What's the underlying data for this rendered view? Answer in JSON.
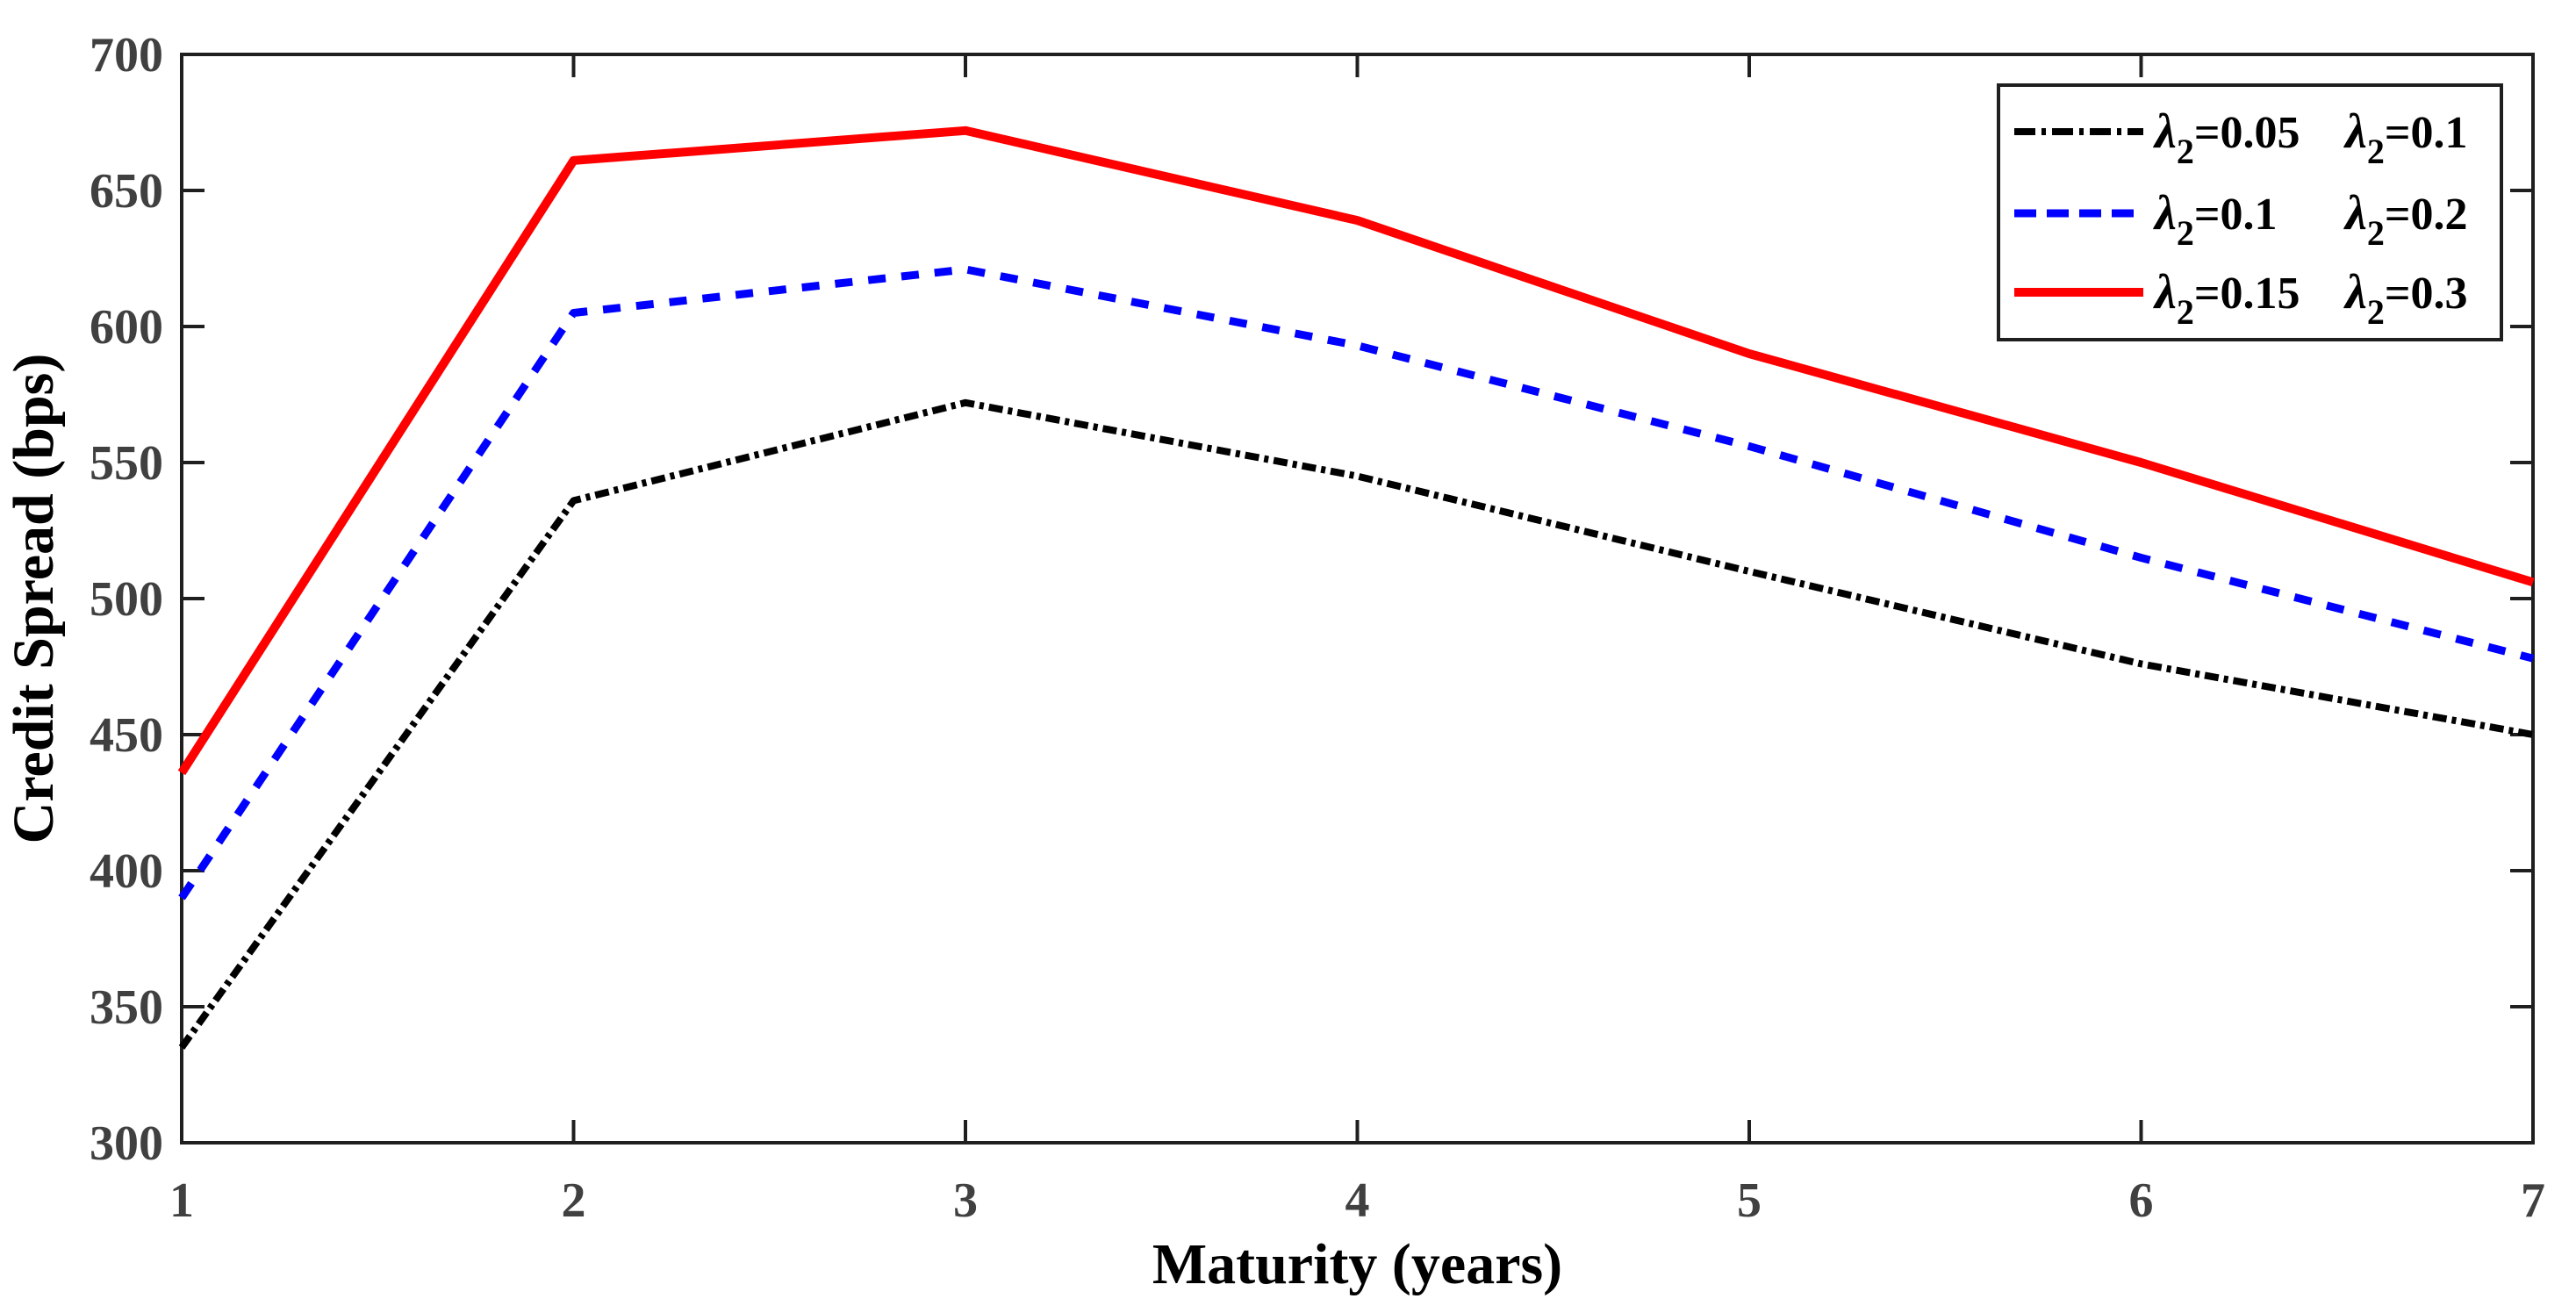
{
  "figure": {
    "background": "#ffffff",
    "xlabel": "Maturity (years)",
    "ylabel": "Credit Spread (bps)"
  },
  "style": {
    "axis_color": "#1f1f1f",
    "tick_label_color": "#404040",
    "axis_label_color": "#000000",
    "legend_border_color": "#1f1f1f",
    "legend_background": "#ffffff",
    "series_colors": {
      "black": "#000000",
      "blue": "#0000ff",
      "red": "#ff0000"
    }
  },
  "chart_data": {
    "type": "line",
    "title": "",
    "xlabel": "Maturity (years)",
    "ylabel": "Credit Spread (bps)",
    "x": [
      1,
      2,
      3,
      4,
      5,
      6,
      7
    ],
    "xlim": [
      1,
      7
    ],
    "ylim": [
      300,
      700
    ],
    "x_ticks": [
      "1",
      "2",
      "3",
      "4",
      "5",
      "6",
      "7"
    ],
    "y_ticks": [
      "300",
      "350",
      "400",
      "450",
      "500",
      "550",
      "600",
      "650",
      "700"
    ],
    "y_tick_values": [
      300,
      350,
      400,
      450,
      500,
      550,
      600,
      650,
      700
    ],
    "grid": false,
    "legend_position": "top-right",
    "series": [
      {
        "name": "λ₂=0.05  λ₂=0.1",
        "color": "#000000",
        "style": "dash-dot",
        "width": 8,
        "values": [
          335,
          536,
          572,
          545,
          510,
          476,
          450
        ]
      },
      {
        "name": "λ₂=0.1   λ₂=0.2",
        "color": "#0000ff",
        "style": "dashed",
        "width": 9,
        "values": [
          390,
          605,
          621,
          593,
          556,
          515,
          478
        ]
      },
      {
        "name": "λ₂=0.15  λ₂=0.3",
        "color": "#ff0000",
        "style": "solid",
        "width": 10,
        "values": [
          436,
          661,
          672,
          639,
          590,
          550,
          506
        ]
      }
    ],
    "legend_entries": [
      {
        "col1": {
          "sym": "λ",
          "sub": "2",
          "rest": "=0.05"
        },
        "col2": {
          "sym": "λ",
          "sub": "2",
          "rest": "=0.1"
        }
      },
      {
        "col1": {
          "sym": "λ",
          "sub": "2",
          "rest": "=0.1"
        },
        "col2": {
          "sym": "λ",
          "sub": "2",
          "rest": "=0.2"
        }
      },
      {
        "col1": {
          "sym": "λ",
          "sub": "2",
          "rest": "=0.15"
        },
        "col2": {
          "sym": "λ",
          "sub": "2",
          "rest": "=0.3"
        }
      }
    ]
  }
}
